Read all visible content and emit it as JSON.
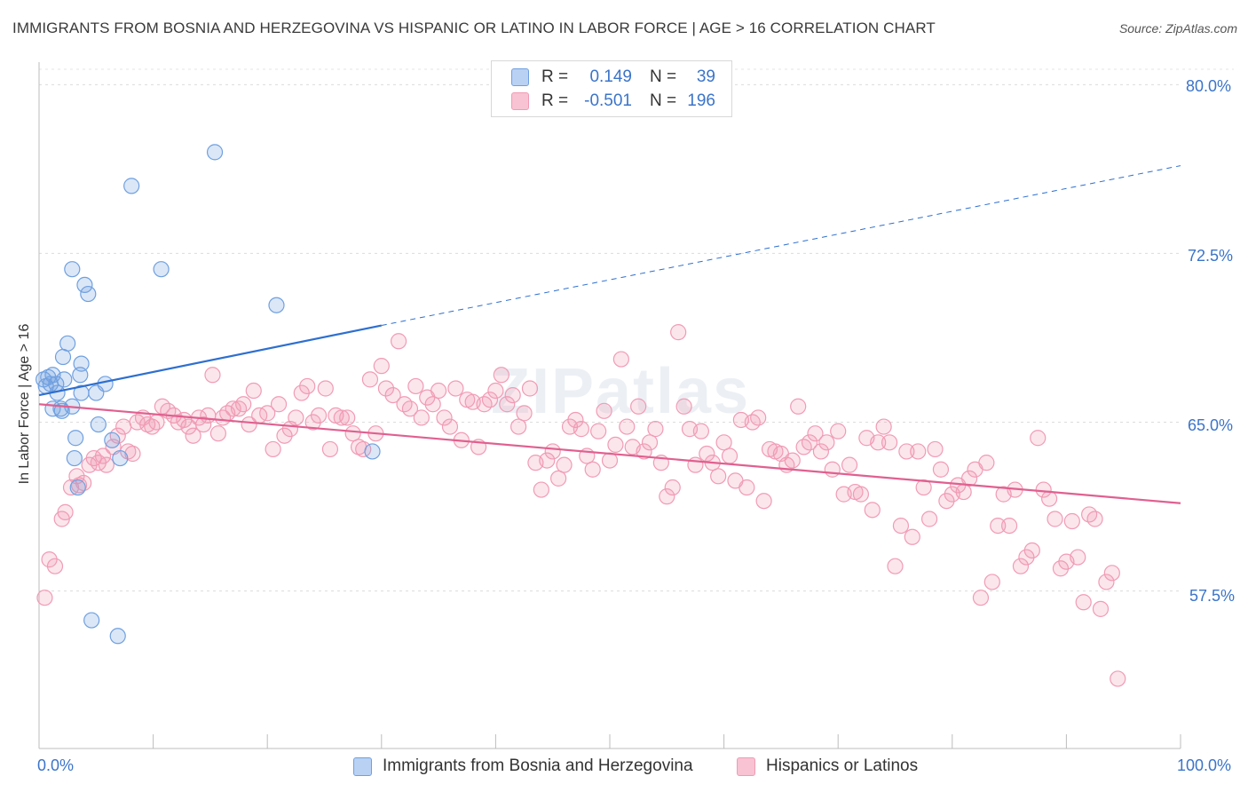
{
  "title": "IMMIGRANTS FROM BOSNIA AND HERZEGOVINA VS HISPANIC OR LATINO IN LABOR FORCE | AGE > 16 CORRELATION CHART",
  "source": "Source: ZipAtlas.com",
  "watermark": "ZIPatlas",
  "colors": {
    "blue": "#6fa0e0",
    "blue_line": "#2e6fcf",
    "pink": "#f19bb5",
    "pink_line": "#e0608f",
    "tick_text": "#3b74c9"
  },
  "legend_top": {
    "rows": [
      {
        "r_label": "R =",
        "r_value": "0.149",
        "n_label": "N =",
        "n_value": "39"
      },
      {
        "r_label": "R =",
        "r_value": "-0.501",
        "n_label": "N =",
        "n_value": "196"
      }
    ]
  },
  "chart_data": {
    "type": "scatter",
    "ylabel": "In Labor Force | Age > 16",
    "xlim": [
      0,
      100
    ],
    "ylim": [
      50.5,
      81.0
    ],
    "x_tick_labels": [
      "0.0%",
      "100.0%"
    ],
    "y_ticks": [
      57.5,
      65.0,
      72.5,
      80.0
    ],
    "y_tick_labels": [
      "57.5%",
      "65.0%",
      "72.5%",
      "80.0%"
    ],
    "grid": true,
    "legend_position": "bottom",
    "series": [
      {
        "name": "Immigrants from Bosnia and Herzegovina",
        "color": "#6fa0e0",
        "trend": {
          "x": [
            0,
            30
          ],
          "y": [
            66.2,
            69.3
          ],
          "dashed_to": [
            100,
            76.4
          ]
        },
        "points": [
          [
            0.4,
            66.9
          ],
          [
            0.6,
            66.6
          ],
          [
            0.8,
            67.0
          ],
          [
            1.0,
            66.7
          ],
          [
            1.2,
            67.1
          ],
          [
            1.5,
            66.7
          ],
          [
            1.2,
            65.6
          ],
          [
            1.6,
            66.3
          ],
          [
            1.9,
            65.6
          ],
          [
            2.0,
            65.5
          ],
          [
            2.1,
            67.9
          ],
          [
            2.2,
            66.9
          ],
          [
            2.5,
            68.5
          ],
          [
            2.9,
            65.7
          ],
          [
            2.9,
            71.8
          ],
          [
            3.2,
            64.3
          ],
          [
            3.1,
            63.4
          ],
          [
            3.4,
            62.1
          ],
          [
            3.6,
            67.1
          ],
          [
            3.7,
            66.3
          ],
          [
            3.7,
            67.6
          ],
          [
            4.0,
            71.1
          ],
          [
            4.3,
            70.7
          ],
          [
            4.6,
            56.2
          ],
          [
            5.0,
            66.3
          ],
          [
            5.2,
            64.9
          ],
          [
            5.8,
            66.7
          ],
          [
            6.4,
            64.2
          ],
          [
            6.9,
            55.5
          ],
          [
            7.1,
            63.4
          ],
          [
            8.1,
            75.5
          ],
          [
            10.7,
            71.8
          ],
          [
            15.4,
            77.0
          ],
          [
            20.8,
            70.2
          ],
          [
            29.2,
            63.7
          ]
        ]
      },
      {
        "name": "Hispanics or Latinos",
        "color": "#f19bb5",
        "trend": {
          "x": [
            0,
            100
          ],
          "y": [
            65.8,
            61.4
          ]
        },
        "points": [
          [
            0.5,
            57.2
          ],
          [
            0.9,
            58.9
          ],
          [
            1.4,
            58.6
          ],
          [
            2.0,
            60.7
          ],
          [
            2.3,
            61.0
          ],
          [
            2.8,
            62.1
          ],
          [
            3.3,
            62.6
          ],
          [
            3.5,
            62.2
          ],
          [
            3.9,
            62.3
          ],
          [
            4.4,
            63.1
          ],
          [
            4.8,
            63.4
          ],
          [
            5.2,
            63.2
          ],
          [
            5.6,
            63.5
          ],
          [
            5.9,
            63.1
          ],
          [
            6.5,
            63.9
          ],
          [
            6.9,
            64.4
          ],
          [
            7.4,
            64.8
          ],
          [
            7.8,
            63.7
          ],
          [
            8.2,
            63.6
          ],
          [
            8.6,
            65.0
          ],
          [
            9.1,
            65.2
          ],
          [
            9.5,
            64.9
          ],
          [
            9.9,
            64.8
          ],
          [
            10.3,
            65.0
          ],
          [
            10.8,
            65.7
          ],
          [
            11.3,
            65.5
          ],
          [
            11.8,
            65.3
          ],
          [
            12.2,
            65.0
          ],
          [
            12.7,
            65.1
          ],
          [
            13.1,
            64.8
          ],
          [
            13.5,
            64.4
          ],
          [
            14.0,
            65.2
          ],
          [
            14.4,
            64.9
          ],
          [
            14.8,
            65.3
          ],
          [
            15.2,
            67.1
          ],
          [
            15.7,
            64.5
          ],
          [
            16.1,
            65.2
          ],
          [
            16.5,
            65.4
          ],
          [
            17.0,
            65.6
          ],
          [
            17.5,
            65.6
          ],
          [
            17.9,
            65.8
          ],
          [
            18.4,
            64.9
          ],
          [
            18.8,
            66.4
          ],
          [
            19.3,
            65.3
          ],
          [
            20.0,
            65.4
          ],
          [
            20.5,
            63.8
          ],
          [
            21.0,
            65.8
          ],
          [
            21.5,
            64.4
          ],
          [
            22.0,
            64.7
          ],
          [
            22.5,
            65.2
          ],
          [
            23.0,
            66.3
          ],
          [
            23.5,
            66.6
          ],
          [
            24.0,
            65.0
          ],
          [
            24.5,
            65.3
          ],
          [
            25.1,
            66.5
          ],
          [
            25.5,
            63.8
          ],
          [
            26.0,
            65.3
          ],
          [
            26.5,
            65.2
          ],
          [
            27.0,
            65.2
          ],
          [
            27.5,
            64.5
          ],
          [
            28.0,
            63.9
          ],
          [
            28.4,
            63.8
          ],
          [
            29.0,
            66.9
          ],
          [
            29.5,
            64.5
          ],
          [
            30.0,
            67.5
          ],
          [
            30.4,
            66.5
          ],
          [
            31.0,
            66.2
          ],
          [
            31.5,
            68.6
          ],
          [
            32.0,
            65.8
          ],
          [
            32.5,
            65.6
          ],
          [
            33.0,
            66.6
          ],
          [
            33.5,
            65.2
          ],
          [
            34.0,
            66.1
          ],
          [
            34.5,
            65.8
          ],
          [
            35.0,
            66.4
          ],
          [
            35.5,
            65.2
          ],
          [
            36.0,
            64.8
          ],
          [
            36.5,
            66.5
          ],
          [
            37.0,
            64.2
          ],
          [
            37.5,
            66.0
          ],
          [
            38.0,
            65.9
          ],
          [
            38.5,
            63.9
          ],
          [
            39.0,
            65.8
          ],
          [
            39.5,
            66.0
          ],
          [
            40.0,
            66.4
          ],
          [
            40.5,
            67.1
          ],
          [
            41.0,
            65.8
          ],
          [
            41.5,
            66.2
          ],
          [
            42.0,
            64.8
          ],
          [
            42.5,
            65.4
          ],
          [
            43.0,
            66.5
          ],
          [
            43.5,
            63.2
          ],
          [
            44.0,
            62.0
          ],
          [
            44.5,
            63.3
          ],
          [
            45.0,
            63.7
          ],
          [
            45.5,
            62.5
          ],
          [
            46.0,
            63.1
          ],
          [
            46.5,
            64.8
          ],
          [
            47.0,
            65.1
          ],
          [
            47.5,
            64.7
          ],
          [
            48.0,
            63.5
          ],
          [
            48.5,
            62.9
          ],
          [
            49.0,
            64.6
          ],
          [
            49.5,
            65.5
          ],
          [
            50.0,
            63.3
          ],
          [
            50.5,
            64.0
          ],
          [
            51.0,
            67.8
          ],
          [
            51.5,
            64.8
          ],
          [
            52.0,
            63.9
          ],
          [
            52.5,
            65.7
          ],
          [
            53.0,
            63.7
          ],
          [
            53.5,
            64.1
          ],
          [
            54.0,
            64.7
          ],
          [
            54.5,
            63.2
          ],
          [
            55.0,
            61.7
          ],
          [
            55.5,
            62.1
          ],
          [
            56.0,
            69.0
          ],
          [
            56.5,
            65.7
          ],
          [
            57.0,
            64.7
          ],
          [
            57.5,
            63.1
          ],
          [
            58.0,
            64.6
          ],
          [
            58.5,
            63.6
          ],
          [
            59.0,
            63.2
          ],
          [
            59.5,
            62.6
          ],
          [
            60.0,
            64.1
          ],
          [
            60.5,
            63.5
          ],
          [
            61.0,
            62.4
          ],
          [
            61.5,
            65.1
          ],
          [
            62.0,
            62.1
          ],
          [
            62.5,
            65.0
          ],
          [
            63.0,
            65.2
          ],
          [
            63.5,
            61.5
          ],
          [
            64.0,
            63.8
          ],
          [
            64.5,
            63.7
          ],
          [
            65.0,
            63.6
          ],
          [
            65.5,
            63.1
          ],
          [
            66.0,
            63.3
          ],
          [
            66.5,
            65.7
          ],
          [
            67.0,
            63.9
          ],
          [
            67.5,
            64.1
          ],
          [
            68.0,
            64.5
          ],
          [
            68.5,
            63.7
          ],
          [
            69.0,
            64.1
          ],
          [
            69.5,
            62.9
          ],
          [
            70.0,
            64.6
          ],
          [
            70.5,
            61.8
          ],
          [
            71.0,
            63.1
          ],
          [
            71.5,
            61.9
          ],
          [
            72.0,
            61.8
          ],
          [
            72.5,
            64.3
          ],
          [
            73.0,
            61.1
          ],
          [
            73.5,
            64.1
          ],
          [
            74.0,
            64.8
          ],
          [
            74.5,
            64.1
          ],
          [
            75.0,
            58.6
          ],
          [
            75.5,
            60.4
          ],
          [
            76.0,
            63.7
          ],
          [
            76.5,
            59.9
          ],
          [
            77.0,
            63.7
          ],
          [
            77.5,
            62.1
          ],
          [
            78.0,
            60.7
          ],
          [
            78.5,
            63.8
          ],
          [
            79.0,
            62.9
          ],
          [
            79.5,
            61.5
          ],
          [
            80.0,
            61.8
          ],
          [
            80.5,
            62.2
          ],
          [
            81.0,
            61.9
          ],
          [
            81.5,
            62.5
          ],
          [
            82.0,
            62.9
          ],
          [
            82.5,
            57.2
          ],
          [
            83.0,
            63.2
          ],
          [
            83.5,
            57.9
          ],
          [
            84.0,
            60.4
          ],
          [
            84.5,
            61.8
          ],
          [
            85.0,
            60.4
          ],
          [
            85.5,
            62.0
          ],
          [
            86.0,
            58.6
          ],
          [
            86.5,
            59.0
          ],
          [
            87.0,
            59.3
          ],
          [
            87.5,
            64.3
          ],
          [
            88.0,
            62.0
          ],
          [
            88.5,
            61.6
          ],
          [
            89.0,
            60.7
          ],
          [
            89.5,
            58.5
          ],
          [
            90.0,
            58.8
          ],
          [
            90.5,
            60.6
          ],
          [
            91.0,
            59.0
          ],
          [
            91.5,
            57.0
          ],
          [
            92.0,
            60.9
          ],
          [
            92.5,
            60.7
          ],
          [
            93.0,
            56.7
          ],
          [
            93.5,
            57.9
          ],
          [
            94.0,
            58.3
          ],
          [
            94.5,
            53.6
          ]
        ]
      }
    ]
  },
  "legend_bottom": [
    "Immigrants from Bosnia and Herzegovina",
    "Hispanics or Latinos"
  ]
}
